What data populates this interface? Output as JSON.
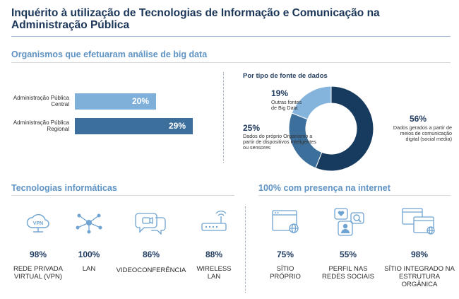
{
  "title": "Inquérito à utilização de Tecnologias de Informação e Comunicação na Administração Pública",
  "big_data": {
    "heading": "Organismos que efetuaram análise de big data",
    "bars": [
      {
        "label": "Administração Pública Central",
        "value": 20,
        "value_label": "20%",
        "color": "#7fb0d9"
      },
      {
        "label": "Administração Pública Regional",
        "value": 29,
        "value_label": "29%",
        "color": "#3d6f9c"
      }
    ]
  },
  "sources": {
    "heading": "Por tipo de fonte de dados",
    "slices": [
      {
        "pct": "56%",
        "value": 56,
        "desc": "Dados gerados a partir de meios de comunicação digital (social media)",
        "color": "#173a5f"
      },
      {
        "pct": "25%",
        "value": 25,
        "desc": "Dados do próprio Organismo a partir de dispositivos inteligentes ou sensores",
        "color": "#3d6f9c"
      },
      {
        "pct": "19%",
        "value": 19,
        "desc": "Outras fontes de Big Data",
        "color": "#84b3dc"
      }
    ]
  },
  "tech": {
    "heading": "Tecnologias informáticas",
    "items": [
      {
        "pct": "98%",
        "label": "REDE PRIVADA VIRTUAL (VPN)",
        "icon": "vpn-cloud-icon"
      },
      {
        "pct": "100%",
        "label": "LAN",
        "icon": "network-icon"
      },
      {
        "pct": "86%",
        "label": "VIDEOCONFERÊNCIA",
        "icon": "video-chat-icon"
      },
      {
        "pct": "88%",
        "label": "WIRELESS LAN",
        "icon": "router-icon"
      }
    ]
  },
  "internet": {
    "heading": "100% com presença na internet",
    "items": [
      {
        "pct": "75%",
        "label": "SÍTIO PRÓPRIO",
        "icon": "browser-icon"
      },
      {
        "pct": "55%",
        "label": "PERFIL NAS REDES SOCIAIS",
        "icon": "social-profile-icon"
      },
      {
        "pct": "98%",
        "label": "SÍTIO INTEGRADO NA ESTRUTURA ORGÂNICA",
        "icon": "integrated-site-icon"
      }
    ]
  },
  "chart_data": [
    {
      "type": "bar",
      "title": "Organismos que efetuaram análise de big data",
      "categories": [
        "Administração Pública Central",
        "Administração Pública Regional"
      ],
      "values": [
        20,
        29
      ],
      "unit": "%"
    },
    {
      "type": "pie",
      "title": "Por tipo de fonte de dados",
      "categories": [
        "Dados gerados a partir de meios de comunicação digital (social media)",
        "Dados do próprio Organismo a partir de dispositivos inteligentes ou sensores",
        "Outras fontes de Big Data"
      ],
      "values": [
        56,
        25,
        19
      ],
      "unit": "%"
    }
  ]
}
